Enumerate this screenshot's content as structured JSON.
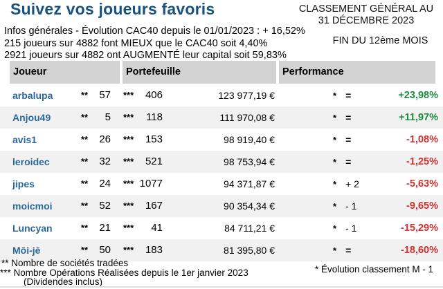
{
  "header": {
    "title": "Suivez vos joueurs favoris",
    "classement_line1": "CLASSEMENT GÉNÉRAL AU",
    "classement_line2": "31 DÉCEMBRE 2023",
    "fin_mois": "FIN DU 12ème MOIS",
    "info_line1": "Infos générales - Évolution CAC40 depuis le 01/01/2023 : + 16,52%",
    "info_line2": "215 joueurs sur 4882 font MIEUX que le CAC40 soit 4,40%",
    "info_line3": "2921 joueurs sur 4882 ont AUGMENTÉ leur capital soit 59,83%"
  },
  "table": {
    "columns": {
      "joueur": "Joueur",
      "portefeuille": "Portefeuille",
      "performance": "Performance"
    },
    "stars2": "**",
    "stars3": "***",
    "star": "*",
    "rows": [
      {
        "name": "arbalupa",
        "societes": "57",
        "operations": "406",
        "portefeuille": "123 977,19 €",
        "evolution": "=",
        "perf": "+23,98%",
        "trend": "up"
      },
      {
        "name": "Anjou49",
        "societes": "5",
        "operations": "118",
        "portefeuille": "111 970,08 €",
        "evolution": "=",
        "perf": "+11,97%",
        "trend": "up"
      },
      {
        "name": "avis1",
        "societes": "26",
        "operations": "153",
        "portefeuille": "98 919,40 €",
        "evolution": "=",
        "perf": "-1,08%",
        "trend": "down"
      },
      {
        "name": "leroidec",
        "societes": "32",
        "operations": "521",
        "portefeuille": "98 753,94 €",
        "evolution": "=",
        "perf": "-1,25%",
        "trend": "down"
      },
      {
        "name": "jipes",
        "societes": "24",
        "operations": "1077",
        "portefeuille": "94 371,87 €",
        "evolution": "+ 2",
        "perf": "-5,63%",
        "trend": "down"
      },
      {
        "name": "moicmoi",
        "societes": "52",
        "operations": "167",
        "portefeuille": "90 354,34 €",
        "evolution": "- 1",
        "perf": "-9,65%",
        "trend": "down"
      },
      {
        "name": "Luncyan",
        "societes": "21",
        "operations": "41",
        "portefeuille": "84 711,21 €",
        "evolution": "- 1",
        "perf": "-15,29%",
        "trend": "down"
      },
      {
        "name": "Mōi-jē",
        "societes": "50",
        "operations": "183",
        "portefeuille": "81 395,80 €",
        "evolution": "=",
        "perf": "-18,60%",
        "trend": "down"
      }
    ]
  },
  "footer": {
    "note_societes": "** Nombre de sociétés tradées",
    "note_operations": "*** Nombre Opérations Réalisées depuis le 1er janvier 2023",
    "note_dividendes": "(Dividendes inclus)",
    "note_evolution": "* Évolution classement M - 1"
  },
  "colors": {
    "title_blue": "#17527f",
    "player_link_blue": "#2c689c",
    "perf_up_green": "#1e8b3e",
    "perf_down_red": "#d22f2f",
    "header_gray": "#d2d2d2",
    "row_stripe_gray": "#f1f1f1"
  }
}
